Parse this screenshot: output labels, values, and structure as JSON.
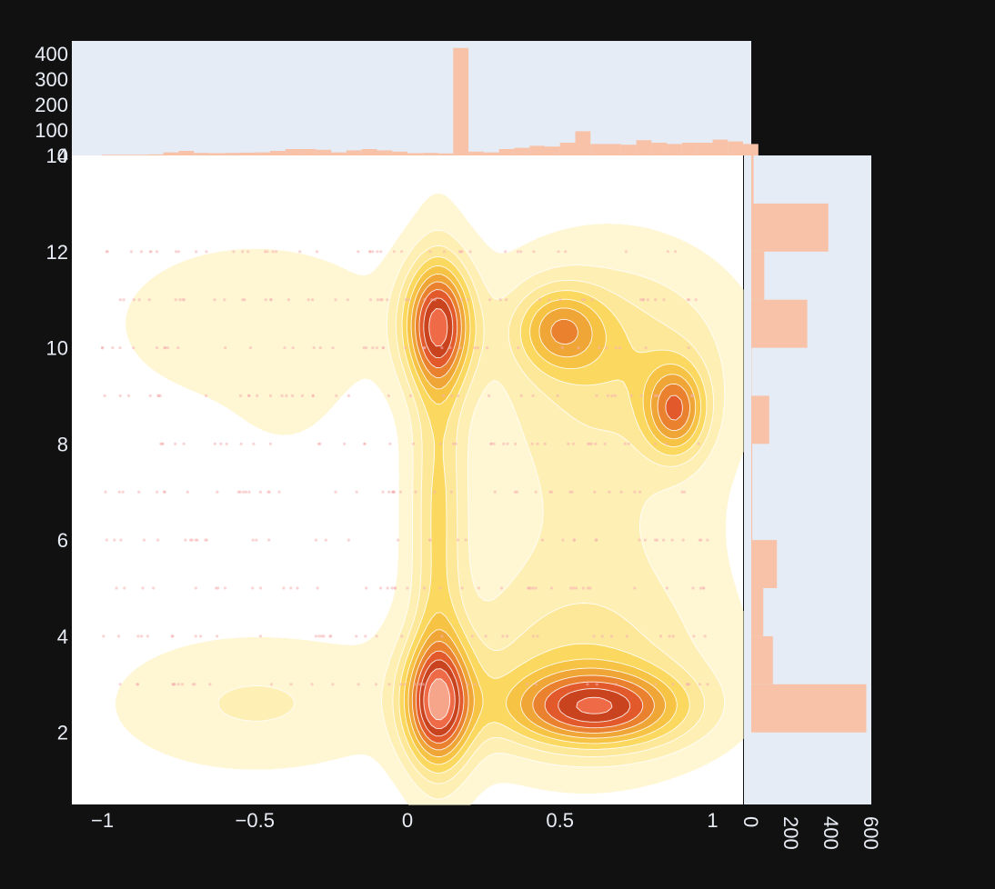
{
  "colors": {
    "page_background": "#111111",
    "marginal_background": "#e5ecf6",
    "histogram_bar": "#f7c2a8",
    "density_levels": [
      "#fff6d4",
      "#feefb5",
      "#fde89a",
      "#fbd960",
      "#f6c344",
      "#efa636",
      "#e9812f",
      "#e25a2b",
      "#c9431e",
      "#ef6a46",
      "#f6a48a",
      "#fcd9cc"
    ],
    "scatter_point": "#f6b0b0",
    "contour_line": "#ffffff",
    "tick_text": "#e8ecf4"
  },
  "chart_data": [
    {
      "name": "joint-density",
      "type": "contour",
      "xlim": [
        -1.1,
        1.1
      ],
      "ylim": [
        0.5,
        14
      ],
      "x_ticks": [
        -1,
        -0.5,
        0,
        0.5,
        1
      ],
      "x_tick_labels": [
        "−1",
        "−0.5",
        "0",
        "0.5",
        "1"
      ],
      "y_ticks": [
        2,
        4,
        6,
        8,
        10,
        12,
        14
      ],
      "y_tick_labels": [
        "2",
        "4",
        "6",
        "8",
        "10",
        "12",
        "14"
      ],
      "levels": 11,
      "density_components": [
        {
          "x": 0.1,
          "y": 10.5,
          "sx": 0.08,
          "sy": 0.9,
          "w": 1.0
        },
        {
          "x": 0.1,
          "y": 2.6,
          "sx": 0.08,
          "sy": 0.9,
          "w": 1.05
        },
        {
          "x": 0.62,
          "y": 2.5,
          "sx": 0.2,
          "sy": 0.55,
          "w": 0.9
        },
        {
          "x": 0.88,
          "y": 8.7,
          "sx": 0.07,
          "sy": 0.65,
          "w": 0.72
        },
        {
          "x": 0.5,
          "y": 10.4,
          "sx": 0.1,
          "sy": 0.6,
          "w": 0.55
        },
        {
          "x": 0.1,
          "y": 6.5,
          "sx": 0.06,
          "sy": 3.2,
          "w": 0.42
        },
        {
          "x": 0.6,
          "y": 6.6,
          "sx": 0.28,
          "sy": 3.0,
          "w": 0.2
        },
        {
          "x": 0.7,
          "y": 9.9,
          "sx": 0.25,
          "sy": 1.3,
          "w": 0.3
        },
        {
          "x": 0.55,
          "y": 3.3,
          "sx": 0.3,
          "sy": 1.2,
          "w": 0.28
        },
        {
          "x": -0.5,
          "y": 10.5,
          "sx": 0.3,
          "sy": 1.1,
          "w": 0.17
        },
        {
          "x": -0.5,
          "y": 2.6,
          "sx": 0.3,
          "sy": 0.9,
          "w": 0.2
        },
        {
          "x": -0.4,
          "y": 8.8,
          "sx": 0.12,
          "sy": 0.8,
          "w": 0.06
        }
      ],
      "scatter_rows_y": [
        12,
        11,
        10,
        9,
        8,
        7,
        6,
        5,
        4,
        3
      ],
      "scatter_x_range": [
        -1.0,
        1.0
      ]
    },
    {
      "name": "x-marginal-histogram",
      "type": "bar",
      "orientation": "vertical",
      "ylim": [
        0,
        450
      ],
      "y_ticks": [
        0,
        100,
        200,
        300,
        400
      ],
      "y_tick_labels": [
        "0",
        "100",
        "200",
        "300",
        "400"
      ],
      "bin_edges_start": -1.0,
      "bin_width": 0.05,
      "values": [
        3,
        3,
        3,
        4,
        12,
        18,
        10,
        9,
        10,
        11,
        12,
        18,
        25,
        25,
        22,
        12,
        20,
        25,
        20,
        15,
        9,
        10,
        8,
        422,
        15,
        12,
        25,
        30,
        38,
        35,
        50,
        95,
        45,
        45,
        42,
        60,
        50,
        45,
        50,
        50,
        62,
        55,
        45
      ]
    },
    {
      "name": "y-marginal-histogram",
      "type": "bar",
      "orientation": "horizontal",
      "xlim": [
        0,
        600
      ],
      "x_ticks": [
        0,
        200,
        400,
        600
      ],
      "x_tick_labels": [
        "0",
        "200",
        "400",
        "600"
      ],
      "bin_edges_start": 2,
      "bin_width": 1,
      "values": [
        575,
        108,
        60,
        128,
        5,
        5,
        90,
        2,
        280,
        65,
        385,
        12
      ]
    }
  ]
}
